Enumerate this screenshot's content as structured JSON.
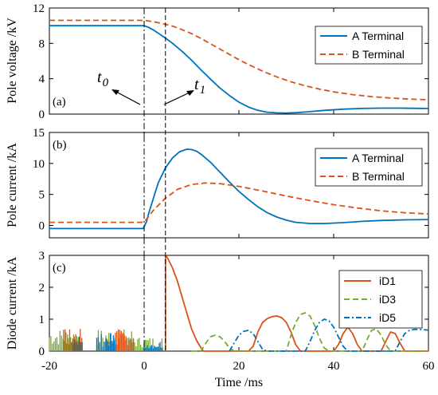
{
  "chart_data": [
    {
      "type": "line",
      "panel_tag": "(a)",
      "xlabel": "",
      "ylabel": "Pole voltage /kV",
      "xlim": [
        -20,
        60
      ],
      "ylim": [
        0,
        12
      ],
      "yticks": [
        "0",
        "4",
        "8",
        "12"
      ],
      "legend_position": "top-right",
      "series": [
        {
          "name": "A Terminal",
          "color": "#0072BD",
          "style": "solid",
          "x": [
            -20,
            0,
            1,
            2,
            3,
            4.5,
            6,
            8,
            10,
            12,
            14,
            16,
            18,
            20,
            22,
            24,
            26,
            28,
            30,
            32,
            35,
            38,
            42,
            46,
            50,
            54,
            58,
            60
          ],
          "y": [
            10,
            10,
            9.8,
            9.5,
            9.15,
            8.6,
            8.0,
            7.1,
            6.1,
            5.0,
            3.95,
            2.95,
            2.1,
            1.35,
            0.8,
            0.42,
            0.22,
            0.14,
            0.13,
            0.16,
            0.28,
            0.42,
            0.56,
            0.64,
            0.68,
            0.68,
            0.65,
            0.63
          ]
        },
        {
          "name": "B Terminal",
          "color": "#D95319",
          "style": "dashed",
          "x": [
            -20,
            0,
            2,
            4.5,
            6,
            8,
            10,
            12,
            14,
            16,
            18,
            20,
            22,
            25,
            28,
            31,
            34,
            37,
            40,
            44,
            48,
            52,
            56,
            60
          ],
          "y": [
            10.6,
            10.6,
            10.45,
            10.15,
            9.95,
            9.55,
            9.1,
            8.55,
            7.95,
            7.35,
            6.75,
            6.15,
            5.6,
            4.85,
            4.2,
            3.65,
            3.2,
            2.82,
            2.52,
            2.2,
            1.98,
            1.82,
            1.7,
            1.62
          ]
        }
      ]
    },
    {
      "type": "line",
      "panel_tag": "(b)",
      "xlabel": "",
      "ylabel": "Pole current /kA",
      "xlim": [
        -20,
        60
      ],
      "ylim": [
        -2,
        15
      ],
      "yticks": [
        "0",
        "5",
        "10",
        "15"
      ],
      "legend_position": "top-right",
      "series": [
        {
          "name": "A Terminal",
          "color": "#0072BD",
          "style": "solid",
          "x": [
            -20,
            -0.2,
            0.5,
            1,
            2,
            3,
            4.5,
            6,
            7.5,
            9,
            10,
            11,
            12,
            14,
            16,
            18,
            20,
            22,
            24,
            26,
            28,
            30,
            32,
            35,
            38,
            42,
            46,
            50,
            55,
            60
          ],
          "y": [
            -0.5,
            -0.5,
            0.6,
            2.0,
            4.5,
            6.9,
            9.3,
            10.9,
            11.9,
            12.3,
            12.25,
            12.0,
            11.5,
            10.2,
            8.6,
            7.0,
            5.5,
            4.2,
            3.0,
            2.05,
            1.35,
            0.85,
            0.5,
            0.3,
            0.3,
            0.45,
            0.65,
            0.8,
            0.9,
            0.95
          ]
        },
        {
          "name": "B Terminal",
          "color": "#D95319",
          "style": "dashed",
          "x": [
            -20,
            -0.2,
            0.5,
            2,
            4.5,
            7,
            10,
            13,
            16,
            20,
            25,
            30,
            35,
            40,
            45,
            50,
            55,
            60
          ],
          "y": [
            0.5,
            0.5,
            1.0,
            2.5,
            4.4,
            5.8,
            6.6,
            6.85,
            6.75,
            6.3,
            5.55,
            4.75,
            4.0,
            3.35,
            2.8,
            2.35,
            2.05,
            1.85
          ]
        }
      ]
    },
    {
      "type": "line",
      "panel_tag": "(c)",
      "xlabel": "Time /ms",
      "ylabel": "Diode current /kA",
      "xlim": [
        -20,
        60
      ],
      "ylim": [
        0,
        3
      ],
      "yticks": [
        "0",
        "1",
        "2",
        "3"
      ],
      "xticks": [
        "-20",
        "0",
        "20",
        "40",
        "60"
      ],
      "legend_position": "top-right",
      "series": [
        {
          "name": "iD1",
          "color": "#D95319",
          "style": "solid",
          "x": [
            4.5,
            4.5,
            5,
            6,
            7,
            8,
            9,
            10,
            11,
            12,
            12.5,
            13,
            14,
            16,
            18,
            20,
            22,
            23,
            24,
            25,
            26,
            27,
            28,
            29,
            30,
            31,
            32,
            33,
            34,
            40,
            41,
            42,
            43,
            44,
            45,
            46,
            50,
            51,
            52,
            53,
            54,
            55,
            60
          ],
          "y": [
            0,
            3.0,
            2.9,
            2.6,
            2.2,
            1.7,
            1.2,
            0.7,
            0.35,
            0.1,
            0,
            0,
            0,
            0,
            0,
            0,
            0,
            0.15,
            0.6,
            0.9,
            1.02,
            1.08,
            1.1,
            1.05,
            0.9,
            0.6,
            0.2,
            0,
            0,
            0,
            0.2,
            0.55,
            0.75,
            0.55,
            0.2,
            0,
            0,
            0.3,
            0.6,
            0.55,
            0.25,
            0,
            0
          ]
        },
        {
          "name": "iD3",
          "color": "#77AC30",
          "style": "dashed",
          "x": [
            10,
            12,
            13,
            14,
            15,
            16,
            17,
            18,
            19,
            20,
            30,
            31,
            32,
            33,
            34,
            35,
            36,
            37,
            38,
            39,
            40,
            46,
            47,
            48,
            49,
            50,
            51,
            52,
            60
          ],
          "y": [
            0,
            0,
            0.25,
            0.45,
            0.5,
            0.45,
            0.3,
            0.1,
            0,
            0,
            0,
            0.5,
            0.9,
            1.15,
            1.2,
            1.1,
            0.8,
            0.4,
            0.1,
            0,
            0,
            0,
            0.35,
            0.65,
            0.7,
            0.5,
            0.2,
            0,
            0
          ]
        },
        {
          "name": "iD5",
          "color": "#0072BD",
          "style": "dashdot",
          "x": [
            18,
            19,
            20,
            21,
            22,
            23,
            24,
            25,
            26,
            34,
            35,
            36,
            37,
            38,
            39,
            40,
            41,
            42,
            43,
            44,
            53,
            54,
            55,
            56,
            57,
            58,
            59,
            60
          ],
          "y": [
            0,
            0.25,
            0.5,
            0.62,
            0.65,
            0.55,
            0.3,
            0.05,
            0,
            0,
            0.3,
            0.65,
            0.9,
            1.0,
            0.95,
            0.75,
            0.45,
            0.15,
            0,
            0,
            0,
            0.3,
            0.55,
            0.65,
            0.68,
            0.68,
            0.67,
            0.66
          ]
        }
      ],
      "noise_bursts": [
        {
          "color": "#77AC30",
          "x_start": -20,
          "x_end": -13,
          "max": 0.7
        },
        {
          "color": "#D95319",
          "x_start": -17,
          "x_end": -13,
          "max": 0.7
        },
        {
          "color": "#0072BD",
          "x_start": -15,
          "x_end": -13,
          "max": 0.55
        },
        {
          "color": "#77AC30",
          "x_start": -10,
          "x_end": -2,
          "max": 0.7
        },
        {
          "color": "#D95319",
          "x_start": -8,
          "x_end": -2,
          "max": 0.7
        },
        {
          "color": "#0072BD",
          "x_start": -10,
          "x_end": -6,
          "max": 0.55
        },
        {
          "color": "#77AC30",
          "x_start": -2,
          "x_end": 4,
          "max": 0.45
        },
        {
          "color": "#0072BD",
          "x_start": 0,
          "x_end": 4,
          "max": 0.3
        }
      ]
    }
  ],
  "markers": {
    "t0": {
      "x": 0,
      "label": "t",
      "sub": "0"
    },
    "t1": {
      "x": 4.5,
      "label": "t",
      "sub": "1"
    }
  }
}
